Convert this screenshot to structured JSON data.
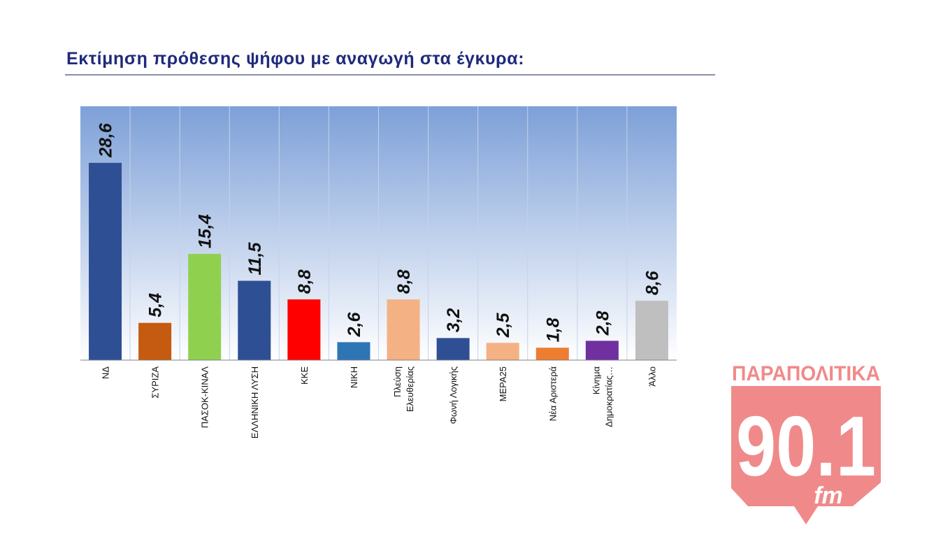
{
  "title": "Εκτίμηση πρόθεσης ψήφου με αναγωγή στα έγκυρα:",
  "logo": {
    "top_text": "ΠΑΡΑΠΟΛΙΤΙΚΑ",
    "frequency": "90.1",
    "suffix": "fm",
    "color": "#f08a8a"
  },
  "colors": {
    "title": "#1f2a7a",
    "plot_top": "#7da0d8",
    "plot_bottom": "#ffffff"
  },
  "chart_data": {
    "type": "bar",
    "categories": [
      "ΝΔ",
      "ΣΥΡΙΖΑ",
      "ΠΑΣΟΚ-ΚΙΝΑΛ",
      "ΕΛΛΗΝΙΚΗ ΛΥΣΗ",
      "ΚΚΕ",
      "ΝΙΚΗ",
      "Πλεύση Ελευθερίας",
      "Φωνή Λογικής",
      "ΜΕΡΑ25",
      "Νέα Αριστερά",
      "Κίνημα Δημοκρατίας…",
      "Άλλο"
    ],
    "category_lines": [
      [
        "ΝΔ"
      ],
      [
        "ΣΥΡΙΖΑ"
      ],
      [
        "ΠΑΣΟΚ-ΚΙΝΑΛ"
      ],
      [
        "ΕΛΛΗΝΙΚΗ ΛΥΣΗ"
      ],
      [
        "ΚΚΕ"
      ],
      [
        "ΝΙΚΗ"
      ],
      [
        "Πλεύση",
        "Ελευθερίας"
      ],
      [
        "Φωνή Λογικής"
      ],
      [
        "ΜΕΡΑ25"
      ],
      [
        "Νέα Αριστερά"
      ],
      [
        "Κίνημα",
        "Δημοκρατίας…"
      ],
      [
        "Άλλο"
      ]
    ],
    "values": [
      28.6,
      5.4,
      15.4,
      11.5,
      8.8,
      2.6,
      8.8,
      3.2,
      2.5,
      1.8,
      2.8,
      8.6
    ],
    "value_labels": [
      "28,6",
      "5,4",
      "15,4",
      "11,5",
      "8,8",
      "2,6",
      "8,8",
      "3,2",
      "2,5",
      "1,8",
      "2,8",
      "8,6"
    ],
    "bar_colors": [
      "#2e4f94",
      "#c55a11",
      "#8fd14f",
      "#2e4f94",
      "#ff0000",
      "#2e75b6",
      "#f4b183",
      "#2e4f94",
      "#f4b183",
      "#ed7d31",
      "#7030a0",
      "#bfbfbf"
    ],
    "ylim": [
      0,
      36.8
    ],
    "grid": "vertical separators",
    "legend": "none",
    "title": "Εκτίμηση πρόθεσης ψήφου με αναγωγή στα έγκυρα:"
  }
}
